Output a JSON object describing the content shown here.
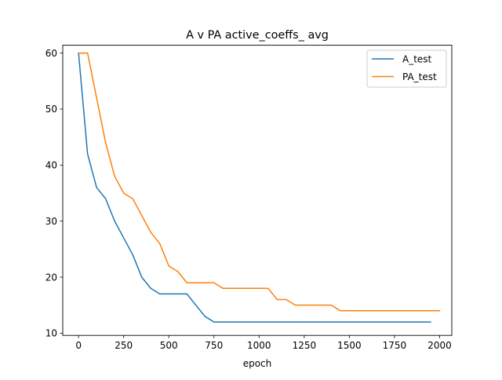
{
  "chart_data": {
    "type": "line",
    "title": "A v PA active_coeffs_ avg",
    "xlabel": "epoch",
    "ylabel": "",
    "xlim": [
      -87.5,
      2067.5
    ],
    "ylim": [
      9.6,
      61.4
    ],
    "xticks": [
      0,
      250,
      500,
      750,
      1000,
      1250,
      1500,
      1750,
      2000
    ],
    "xtick_labels": [
      "0",
      "250",
      "500",
      "750",
      "1000",
      "1250",
      "1500",
      "1750",
      "2000"
    ],
    "yticks": [
      10,
      20,
      30,
      40,
      50,
      60
    ],
    "ytick_labels": [
      "10",
      "20",
      "30",
      "40",
      "50",
      "60"
    ],
    "grid": false,
    "legend_position": "top-right",
    "series": [
      {
        "name": "A_test",
        "color": "#1f77b4",
        "x": [
          0,
          50,
          100,
          150,
          200,
          250,
          300,
          350,
          400,
          450,
          500,
          550,
          600,
          650,
          700,
          750,
          800,
          850,
          900,
          950,
          1000,
          1050,
          1100,
          1150,
          1200,
          1250,
          1300,
          1350,
          1400,
          1450,
          1500,
          1550,
          1600,
          1650,
          1700,
          1750,
          1800,
          1850,
          1900,
          1950
        ],
        "y": [
          60,
          42,
          36,
          34,
          30,
          27,
          24,
          20,
          18,
          17,
          17,
          17,
          17,
          15,
          13,
          12,
          12,
          12,
          12,
          12,
          12,
          12,
          12,
          12,
          12,
          12,
          12,
          12,
          12,
          12,
          12,
          12,
          12,
          12,
          12,
          12,
          12,
          12,
          12,
          12
        ]
      },
      {
        "name": "PA_test",
        "color": "#ff7f0e",
        "x": [
          0,
          50,
          100,
          150,
          200,
          250,
          300,
          350,
          400,
          450,
          500,
          550,
          600,
          650,
          700,
          750,
          800,
          850,
          900,
          950,
          1000,
          1050,
          1100,
          1150,
          1200,
          1250,
          1300,
          1350,
          1400,
          1450,
          1500,
          1550,
          1600,
          1650,
          1700,
          1750,
          1800,
          1850,
          1900,
          1950,
          2000
        ],
        "y": [
          60,
          60,
          52,
          44,
          38,
          35,
          34,
          31,
          28,
          26,
          22,
          21,
          19,
          19,
          19,
          19,
          18,
          18,
          18,
          18,
          18,
          18,
          16,
          16,
          15,
          15,
          15,
          15,
          15,
          14,
          14,
          14,
          14,
          14,
          14,
          14,
          14,
          14,
          14,
          14,
          14
        ]
      }
    ]
  }
}
